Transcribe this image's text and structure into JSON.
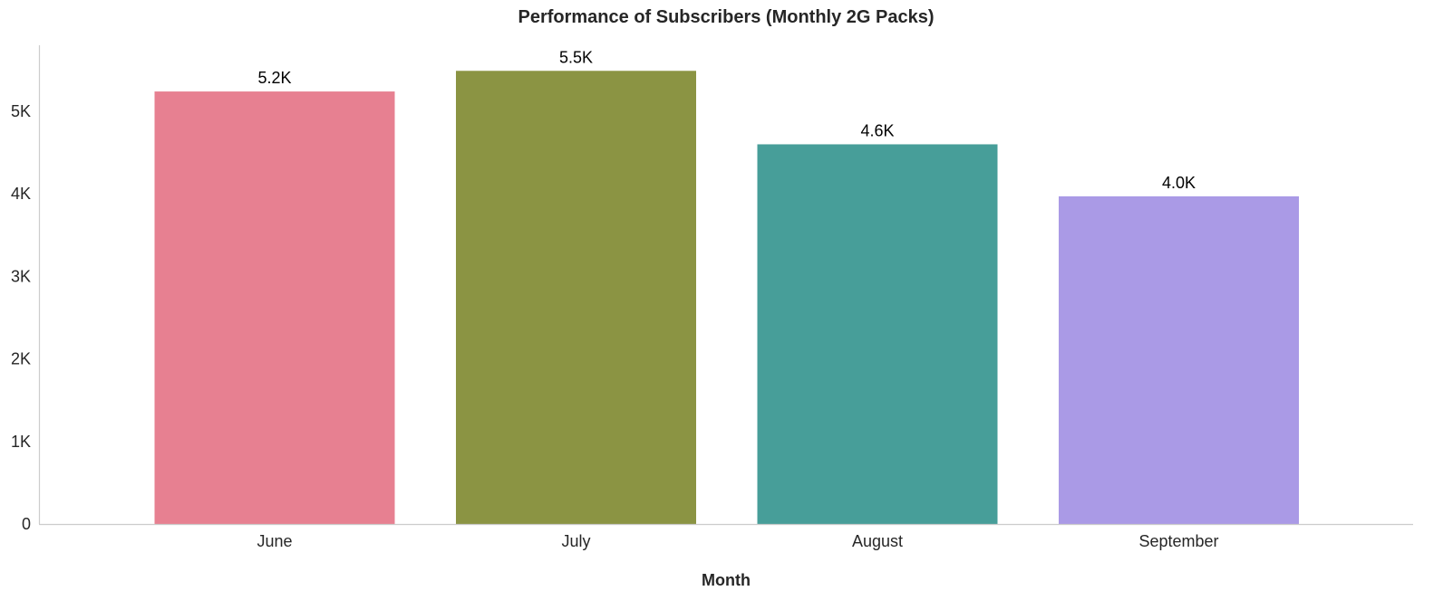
{
  "chart_data": {
    "type": "bar",
    "title": "Performance of Subscribers (Monthly 2G Packs)",
    "xlabel": "Month",
    "ylabel": "",
    "categories": [
      "June",
      "July",
      "August",
      "September"
    ],
    "values": [
      5240,
      5490,
      4600,
      3970
    ],
    "data_labels": [
      "5.2K",
      "5.5K",
      "4.6K",
      "4.0K"
    ],
    "colors": [
      "#e78091",
      "#8b9443",
      "#479e99",
      "#aa9ae6"
    ],
    "ylim": [
      0,
      5800
    ],
    "yticks": [
      0,
      1000,
      2000,
      3000,
      4000,
      5000
    ],
    "ytick_labels": [
      "0",
      "1K",
      "2K",
      "3K",
      "4K",
      "5K"
    ],
    "grid": false,
    "legend": "none"
  }
}
